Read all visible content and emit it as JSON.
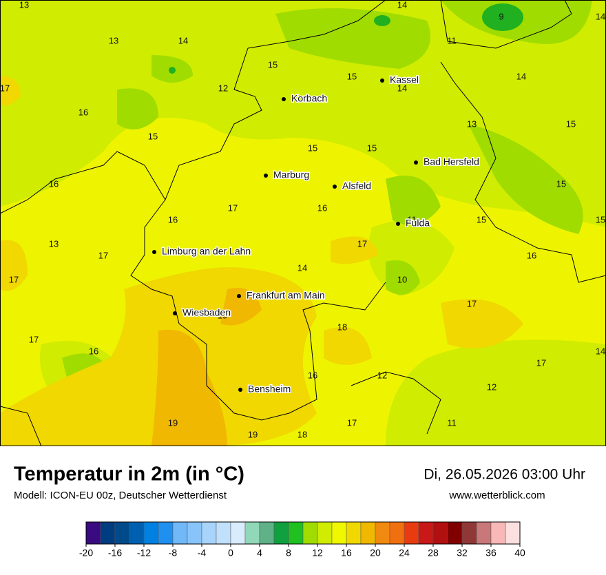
{
  "header": {
    "title": "Temperatur in 2m (in °C)",
    "subtitle": "Modell: ICON-EU 00z, Deutscher Wetterdienst",
    "date": "Di, 26.05.2026 03:00 Uhr",
    "website": "www.wetterblick.com"
  },
  "map": {
    "cities": [
      "Kassel",
      "Korbach",
      "Marburg",
      "Alsfeld",
      "Bad Hersfeld",
      "Fulda",
      "Limburg an der Lahn",
      "Frankfurt am Main",
      "Wiesbaden",
      "Bensheim"
    ],
    "temperature_labels": [
      13,
      14,
      9,
      14,
      13,
      14,
      11,
      15,
      15,
      14,
      14,
      17,
      12,
      16,
      13,
      15,
      15,
      15,
      15,
      16,
      15,
      17,
      16,
      16,
      11,
      15,
      15,
      13,
      17,
      17,
      16,
      14,
      17,
      10,
      17,
      19,
      18,
      17,
      16,
      14,
      17,
      16,
      12,
      12,
      19,
      17,
      11,
      19,
      18
    ]
  },
  "colorbar": {
    "ticks": [
      -20,
      -16,
      -12,
      -8,
      -4,
      0,
      4,
      8,
      12,
      16,
      20,
      24,
      28,
      32,
      36,
      40
    ],
    "colors": [
      "#3a0a80",
      "#003c80",
      "#004a8a",
      "#0060b0",
      "#0080e0",
      "#2090f0",
      "#70b8f8",
      "#88c4fa",
      "#a8d4fc",
      "#c0e0fc",
      "#d8ecfc",
      "#90d8b8",
      "#60b088",
      "#10a040",
      "#20c020",
      "#a0dc00",
      "#d0ec00",
      "#f0f800",
      "#f0d800",
      "#f0b800",
      "#f08a10",
      "#f07010",
      "#e83c10",
      "#c81818",
      "#b01010",
      "#800000",
      "#903838",
      "#c87878",
      "#f8b8b8",
      "#fce0e0"
    ]
  }
}
